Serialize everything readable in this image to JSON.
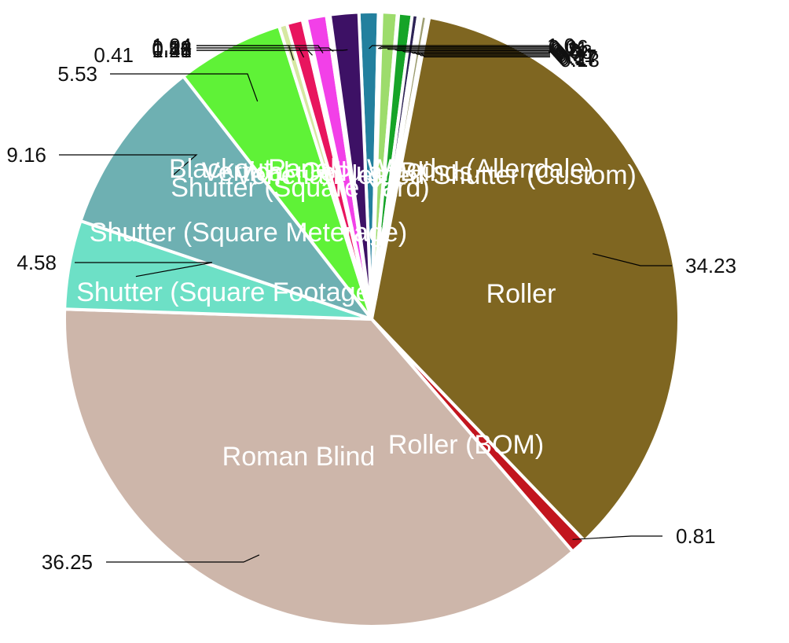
{
  "chart_data": {
    "type": "pie",
    "start_angle_deg": -2.4,
    "slices": [
      {
        "label": "",
        "value": 1.0,
        "color": "#23809e"
      },
      {
        "label": "",
        "value": 0.06,
        "color": "#e8f2a0"
      },
      {
        "label": "",
        "value": 0.11,
        "color": "#f06bb8"
      },
      {
        "label": "",
        "value": 0.8,
        "color": "#9ddc6c"
      },
      {
        "label": "",
        "value": 0.06,
        "color": "#40c9c0"
      },
      {
        "label": "",
        "value": 0.7,
        "color": "#16a428"
      },
      {
        "label": "",
        "value": 0.31,
        "color": "#2e2456"
      },
      {
        "label": "",
        "value": 0.17,
        "color": "#c6ddb3"
      },
      {
        "label": "",
        "value": 0.27,
        "color": "#9e9e72"
      },
      {
        "label": "",
        "value": 0.13,
        "color": "#dce7b8"
      },
      {
        "label": "Roller",
        "value": 34.23,
        "color": "#7f6621"
      },
      {
        "label": "Roller (BOM)",
        "value": 0.81,
        "color": "#c2151e"
      },
      {
        "label": "Roman Blind",
        "value": 36.25,
        "color": "#cdb6aa"
      },
      {
        "label": "Shutter (Square Footage)",
        "value": 4.58,
        "color": "#6de0c6"
      },
      {
        "label": "Shutter (Square Meterage)",
        "value": 9.16,
        "color": "#6eb0b2"
      },
      {
        "label": "Shutter (Square Yard)",
        "value": 5.53,
        "color": "#5ff237"
      },
      {
        "label": "",
        "value": 0.41,
        "color": "#d6e8a2"
      },
      {
        "label": "",
        "value": 0.82,
        "color": "#e8155e"
      },
      {
        "label": "",
        "value": 0.21,
        "color": "#ffffff"
      },
      {
        "label": "",
        "value": 1.04,
        "color": "#f240e8"
      },
      {
        "label": "",
        "value": 0.18,
        "color": "#ffffff"
      },
      {
        "label": "",
        "value": 1.48,
        "color": "#3d1165"
      }
    ],
    "value_labels": {
      "right_cluster": [
        "1.0",
        "0.06",
        "0.11",
        "0.8",
        "0.06",
        "0.7",
        "0.31",
        "0.17",
        "0.27",
        "0.13"
      ],
      "left_cluster": [
        "0.41",
        "0.82",
        "0.21",
        "1.04",
        "0.18",
        "1.48"
      ],
      "large": [
        "34.23",
        "0.81",
        "36.25",
        "4.58",
        "9.16",
        "5.53"
      ]
    },
    "category_labels_overlap": [
      "Blackout",
      "Vertical",
      "Venetian",
      "Panel",
      "Cellular",
      "Pleated",
      "Wood",
      "Blinds",
      "Shutter (Custom)",
      "(Allendale)"
    ],
    "title": "",
    "legend": "none"
  }
}
